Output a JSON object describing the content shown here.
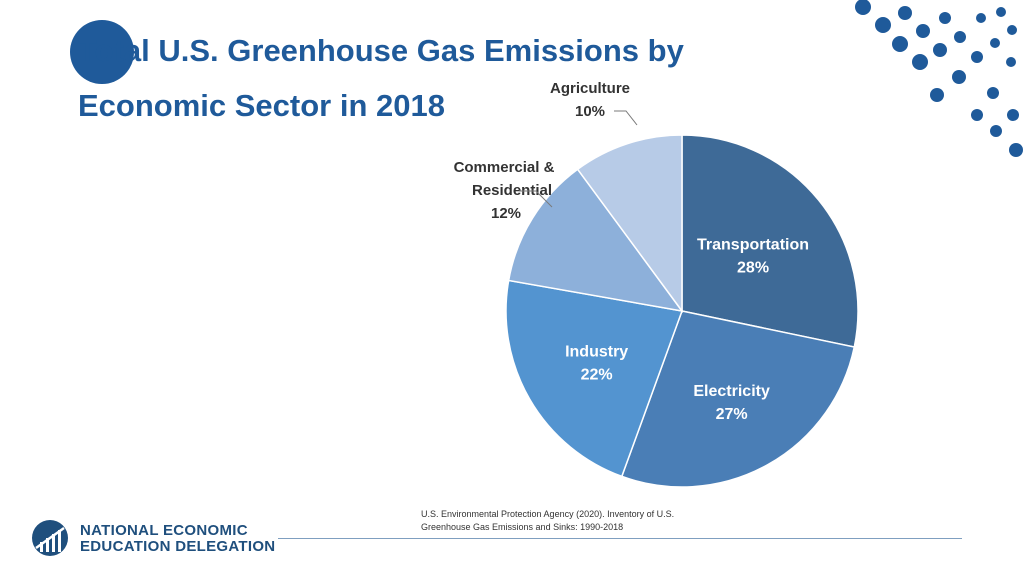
{
  "slide": {
    "title_line1": "Total U.S. Greenhouse Gas Emissions by",
    "title_line2": "Economic Sector in 2018"
  },
  "chart_data": {
    "type": "pie",
    "title": "",
    "slices": [
      {
        "label": "Transportation",
        "value": 28,
        "value_label": "28%",
        "color": "#3e6a97"
      },
      {
        "label": "Electricity",
        "value": 27,
        "value_label": "27%",
        "color": "#4a7eb6"
      },
      {
        "label": "Industry",
        "value": 22,
        "value_label": "22%",
        "color": "#5394d0"
      },
      {
        "label": "Commercial & Residential",
        "value": 12,
        "value_label": "12%",
        "color": "#8db0da"
      },
      {
        "label": "Agriculture",
        "value": 10,
        "value_label": "10%",
        "color": "#b7cbe7"
      }
    ]
  },
  "source": {
    "line1": "U.S. Environmental Protection Agency (2020). Inventory of U.S.",
    "line2": "Greenhouse Gas Emissions and Sinks: 1990-2018"
  },
  "brand": {
    "line1": "NATIONAL ECONOMIC",
    "line2": "EDUCATION DELEGATION"
  },
  "colors": {
    "accent": "#1f5a9a",
    "dots": "#1f5a9a"
  }
}
